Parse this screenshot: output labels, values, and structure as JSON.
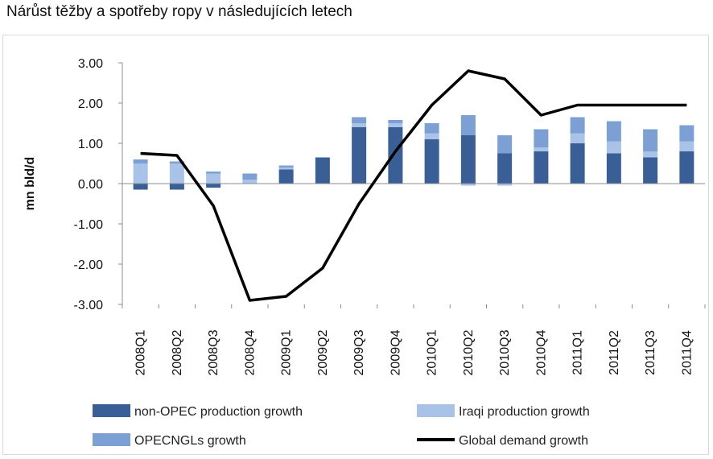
{
  "page": {
    "title": "Nárůst těžby a spotřeby ropy v následujících letech"
  },
  "chart_data": {
    "type": "bar",
    "stacked": true,
    "categories": [
      "2008Q1",
      "2008Q2",
      "2008Q3",
      "2008Q4",
      "2009Q1",
      "2009Q2",
      "2009Q3",
      "2009Q4",
      "2010Q1",
      "2010Q2",
      "2010Q3",
      "2010Q4",
      "2011Q1",
      "2011Q2",
      "2011Q3",
      "2011Q4"
    ],
    "category_labels": [
      "2008Q1",
      "2008Q2",
      "2008Q3",
      "2008Q4",
      "2009Q1",
      "2009Q2",
      "2009Q3",
      "2009Q4",
      "2010Q1",
      "2010Q2",
      "2010Q3",
      "2010Q4",
      "2011Q1",
      "2011Q2",
      "2011Q3",
      "2011Q4"
    ],
    "ylabel": "mn bld/d",
    "xlabel": "",
    "ylim": [
      -3,
      3
    ],
    "yticks": [
      3,
      2,
      1,
      0,
      -1,
      -2,
      -3
    ],
    "ytick_labels": [
      "3.00",
      "2.00",
      "1.00",
      "0.00",
      "-1.00",
      "-2.00",
      "-3.00"
    ],
    "grid": false,
    "legend_position": "bottom",
    "series": [
      {
        "name": "non-OPEC production growth",
        "kind": "bar",
        "color": "#3a5f96",
        "values": [
          -0.15,
          -0.15,
          -0.1,
          0.0,
          0.35,
          0.65,
          1.4,
          1.4,
          1.1,
          1.2,
          0.75,
          0.8,
          1.0,
          0.75,
          0.65,
          0.8
        ]
      },
      {
        "name": "Iraqi production growth",
        "kind": "bar",
        "color": "#a9c3e8",
        "values": [
          0.5,
          0.5,
          0.25,
          0.1,
          0.05,
          0.0,
          0.1,
          0.1,
          0.15,
          -0.05,
          -0.05,
          0.1,
          0.25,
          0.3,
          0.15,
          0.25
        ]
      },
      {
        "name": "OPECNGLs growth",
        "kind": "bar",
        "color": "#7c9fd4",
        "values": [
          0.1,
          0.05,
          0.05,
          0.15,
          0.05,
          0.0,
          0.15,
          0.08,
          0.25,
          0.5,
          0.45,
          0.45,
          0.4,
          0.5,
          0.55,
          0.4
        ]
      },
      {
        "name": "Global demand growth",
        "kind": "line",
        "color": "#000000",
        "values": [
          0.75,
          0.7,
          -0.55,
          -2.9,
          -2.8,
          -2.1,
          -0.5,
          0.8,
          1.95,
          2.8,
          2.6,
          1.7,
          1.95,
          1.95,
          1.95,
          1.95
        ]
      }
    ]
  }
}
